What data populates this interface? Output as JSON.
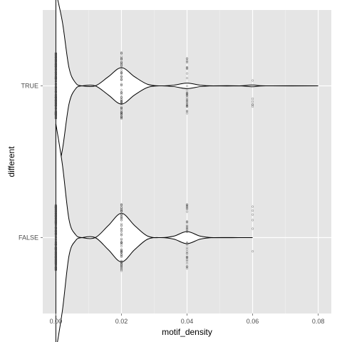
{
  "chart_data": {
    "type": "violin",
    "orientation": "horizontal",
    "xlabel": "motif_density",
    "ylabel": "different",
    "xlim": [
      -0.004,
      0.084
    ],
    "x_ticks": [
      0.0,
      0.02,
      0.04,
      0.06,
      0.08
    ],
    "x_tick_labels": [
      "0.00",
      "0.02",
      "0.04",
      "0.06",
      "0.08"
    ],
    "categories": [
      "TRUE",
      "FALSE"
    ],
    "grid": true,
    "legend": "none",
    "colors": {
      "panel_background": "#e5e5e5",
      "grid_major": "#ffffff",
      "grid_minor": "#f2f2f2",
      "violin_outline": "#000000",
      "points": "#4d4d4d"
    },
    "series": [
      {
        "name": "TRUE",
        "x_range": [
          0.0,
          0.08
        ],
        "density_profile": [
          [
            0.0,
            0.62
          ],
          [
            0.002,
            0.42
          ],
          [
            0.004,
            0.12
          ],
          [
            0.006,
            0.02
          ],
          [
            0.008,
            0.0
          ],
          [
            0.012,
            0.0
          ],
          [
            0.016,
            0.06
          ],
          [
            0.02,
            0.12
          ],
          [
            0.024,
            0.06
          ],
          [
            0.028,
            0.01
          ],
          [
            0.032,
            0.0
          ],
          [
            0.036,
            0.005
          ],
          [
            0.04,
            0.018
          ],
          [
            0.044,
            0.005
          ],
          [
            0.048,
            0.0
          ],
          [
            0.056,
            0.0
          ],
          [
            0.06,
            0.006
          ],
          [
            0.064,
            0.0
          ],
          [
            0.08,
            0.0
          ]
        ],
        "point_groups": [
          {
            "x": 0.0,
            "count": 260,
            "spread": 0.43
          },
          {
            "x": 0.02,
            "count": 70,
            "spread": 0.44
          },
          {
            "x": 0.04,
            "count": 35,
            "spread": 0.39
          },
          {
            "x": 0.06,
            "count": 6,
            "spread": 0.32
          }
        ]
      },
      {
        "name": "FALSE",
        "x_range": [
          0.0,
          0.06
        ],
        "density_profile": [
          [
            0.0,
            0.75
          ],
          [
            0.002,
            0.48
          ],
          [
            0.004,
            0.12
          ],
          [
            0.006,
            0.02
          ],
          [
            0.008,
            0.0
          ],
          [
            0.012,
            0.0
          ],
          [
            0.016,
            0.08
          ],
          [
            0.02,
            0.16
          ],
          [
            0.024,
            0.08
          ],
          [
            0.028,
            0.01
          ],
          [
            0.032,
            0.0
          ],
          [
            0.036,
            0.01
          ],
          [
            0.04,
            0.04
          ],
          [
            0.044,
            0.01
          ],
          [
            0.048,
            0.0
          ],
          [
            0.056,
            0.0
          ],
          [
            0.06,
            0.0
          ]
        ],
        "point_groups": [
          {
            "x": 0.0,
            "count": 300,
            "spread": 0.43
          },
          {
            "x": 0.02,
            "count": 70,
            "spread": 0.44
          },
          {
            "x": 0.04,
            "count": 40,
            "spread": 0.44
          },
          {
            "x": 0.06,
            "count": 6,
            "spread": 0.44
          }
        ]
      }
    ]
  }
}
